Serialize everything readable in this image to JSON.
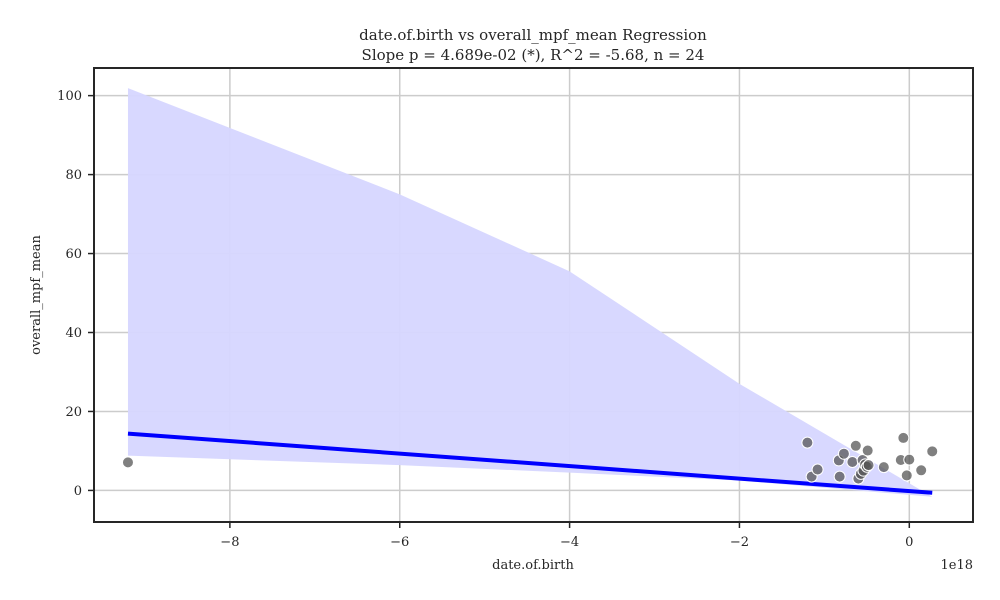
{
  "chart_data": {
    "type": "scatter",
    "title": "date.of.birth vs overall_mpf_mean Regression",
    "subtitle": "Slope p = 4.689e-02 (*), R^2 = -5.68, n = 24",
    "xlabel": "date.of.birth",
    "ylabel": "overall_mpf_mean",
    "x_offset_label": "1e18",
    "xlim": [
      -9.6,
      0.75
    ],
    "ylim": [
      -8,
      107
    ],
    "x_unit_scale": 1e+18,
    "xticks": [
      -8,
      -6,
      -4,
      -2,
      0
    ],
    "xtick_labels": [
      "−8",
      "−6",
      "−4",
      "−2",
      "0"
    ],
    "yticks": [
      0,
      20,
      40,
      60,
      80,
      100
    ],
    "ytick_labels": [
      "0",
      "20",
      "40",
      "60",
      "80",
      "100"
    ],
    "grid": true,
    "colors": {
      "points": "#555555",
      "regression_line": "#0000ff",
      "confidence_band": "#d6d6ff",
      "grid": "#cccccc",
      "axes": "#262626"
    },
    "points": [
      {
        "x": -9.2,
        "y": 7.1
      },
      {
        "x": -1.2,
        "y": 12.1
      },
      {
        "x": -1.15,
        "y": 3.5
      },
      {
        "x": -1.08,
        "y": 5.3
      },
      {
        "x": -0.83,
        "y": 7.6
      },
      {
        "x": -0.82,
        "y": 3.5
      },
      {
        "x": -0.77,
        "y": 9.3
      },
      {
        "x": -0.67,
        "y": 7.2
      },
      {
        "x": -0.63,
        "y": 11.3
      },
      {
        "x": -0.6,
        "y": 3.0
      },
      {
        "x": -0.57,
        "y": 4.2
      },
      {
        "x": -0.55,
        "y": 7.7
      },
      {
        "x": -0.54,
        "y": 5.0
      },
      {
        "x": -0.52,
        "y": 6.6
      },
      {
        "x": -0.5,
        "y": 6.0
      },
      {
        "x": -0.49,
        "y": 10.1
      },
      {
        "x": -0.48,
        "y": 6.4
      },
      {
        "x": -0.3,
        "y": 5.9
      },
      {
        "x": -0.1,
        "y": 7.7
      },
      {
        "x": -0.07,
        "y": 13.3
      },
      {
        "x": -0.03,
        "y": 3.8
      },
      {
        "x": 0.0,
        "y": 7.8
      },
      {
        "x": 0.14,
        "y": 5.1
      },
      {
        "x": 0.27,
        "y": 9.9
      }
    ],
    "regression_line": {
      "x": [
        -9.2,
        0.27
      ],
      "y": [
        14.4,
        -0.6
      ]
    },
    "confidence_band": {
      "x": [
        -9.2,
        -6.0,
        -4.0,
        -2.0,
        0.27
      ],
      "upper": [
        101.9,
        75.0,
        55.5,
        27.0,
        -1.6
      ],
      "lower": [
        8.8,
        6.4,
        4.5,
        2.5,
        -1.6
      ]
    }
  }
}
